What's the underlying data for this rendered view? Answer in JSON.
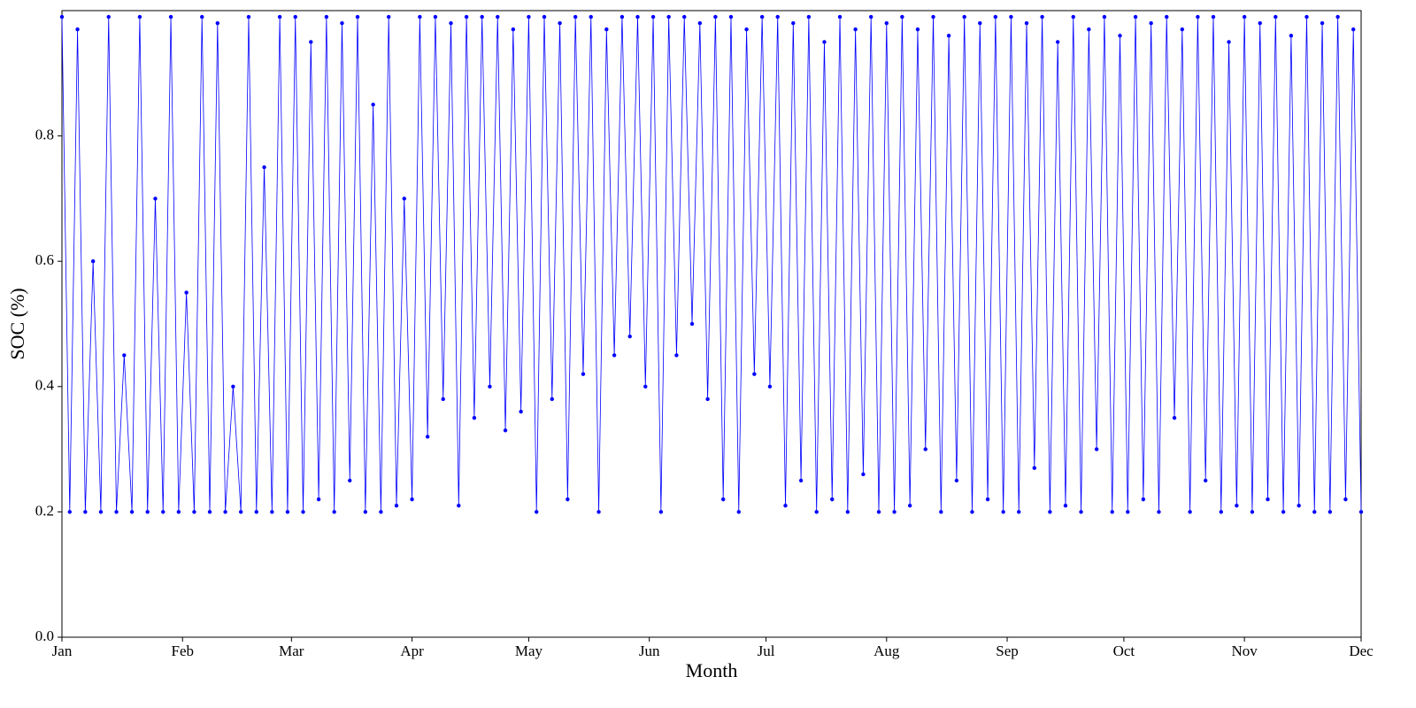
{
  "chart_data": {
    "type": "line",
    "xlabel": "Month",
    "ylabel": "SOC (%)",
    "xlim": [
      0,
      334
    ],
    "ylim": [
      0,
      1
    ],
    "xticks": [
      {
        "value": 0,
        "label": "Jan"
      },
      {
        "value": 31,
        "label": "Feb"
      },
      {
        "value": 59,
        "label": "Mar"
      },
      {
        "value": 90,
        "label": "Apr"
      },
      {
        "value": 120,
        "label": "May"
      },
      {
        "value": 151,
        "label": "Jun"
      },
      {
        "value": 181,
        "label": "Jul"
      },
      {
        "value": 212,
        "label": "Aug"
      },
      {
        "value": 243,
        "label": "Sep"
      },
      {
        "value": 273,
        "label": "Oct"
      },
      {
        "value": 304,
        "label": "Nov"
      },
      {
        "value": 334,
        "label": "Dec"
      }
    ],
    "yticks": [
      {
        "value": 0,
        "label": "0.0"
      },
      0.2,
      0.4,
      0.6,
      0.8
    ],
    "grid": false,
    "x": [
      0,
      2,
      4,
      6,
      8,
      10,
      12,
      14,
      16,
      18,
      20,
      22,
      24,
      26,
      28,
      30,
      32,
      34,
      36,
      38,
      40,
      42,
      44,
      46,
      48,
      50,
      52,
      54,
      56,
      58,
      60,
      62,
      64,
      66,
      68,
      70,
      72,
      74,
      76,
      78,
      80,
      82,
      84,
      86,
      88,
      90,
      92,
      94,
      96,
      98,
      100,
      102,
      104,
      106,
      108,
      110,
      112,
      114,
      116,
      118,
      120,
      122,
      124,
      126,
      128,
      130,
      132,
      134,
      136,
      138,
      140,
      142,
      144,
      146,
      148,
      150,
      152,
      154,
      156,
      158,
      160,
      162,
      164,
      166,
      168,
      170,
      172,
      174,
      176,
      178,
      180,
      182,
      184,
      186,
      188,
      190,
      192,
      194,
      196,
      198,
      200,
      202,
      204,
      206,
      208,
      210,
      212,
      214,
      216,
      218,
      220,
      222,
      224,
      226,
      228,
      230,
      232,
      234,
      236,
      238,
      240,
      242,
      244,
      246,
      248,
      250,
      252,
      254,
      256,
      258,
      260,
      262,
      264,
      266,
      268,
      270,
      272,
      274,
      276,
      278,
      280,
      282,
      284,
      286,
      288,
      290,
      292,
      294,
      296,
      298,
      300,
      302,
      304,
      306,
      308,
      310,
      312,
      314,
      316,
      318,
      320,
      322,
      324,
      326,
      328,
      330,
      332,
      334
    ],
    "series": [
      {
        "color": "#0000ff",
        "values": [
          0.99,
          0.2,
          0.97,
          0.2,
          0.6,
          0.2,
          0.99,
          0.2,
          0.45,
          0.2,
          0.99,
          0.2,
          0.7,
          0.2,
          0.99,
          0.2,
          0.55,
          0.2,
          0.99,
          0.2,
          0.98,
          0.2,
          0.4,
          0.2,
          0.99,
          0.2,
          0.75,
          0.2,
          0.99,
          0.2,
          0.99,
          0.2,
          0.95,
          0.22,
          0.99,
          0.2,
          0.98,
          0.25,
          0.99,
          0.2,
          0.85,
          0.2,
          0.99,
          0.21,
          0.7,
          0.22,
          0.99,
          0.32,
          0.99,
          0.38,
          0.98,
          0.21,
          0.99,
          0.35,
          0.99,
          0.4,
          0.99,
          0.33,
          0.97,
          0.36,
          0.99,
          0.2,
          0.99,
          0.38,
          0.98,
          0.22,
          0.99,
          0.42,
          0.99,
          0.2,
          0.97,
          0.45,
          0.99,
          0.48,
          0.99,
          0.4,
          0.99,
          0.2,
          0.99,
          0.45,
          0.99,
          0.5,
          0.98,
          0.38,
          0.99,
          0.22,
          0.99,
          0.2,
          0.97,
          0.42,
          0.99,
          0.4,
          0.99,
          0.21,
          0.98,
          0.25,
          0.99,
          0.2,
          0.95,
          0.22,
          0.99,
          0.2,
          0.97,
          0.26,
          0.99,
          0.2,
          0.98,
          0.2,
          0.99,
          0.21,
          0.97,
          0.3,
          0.99,
          0.2,
          0.96,
          0.25,
          0.99,
          0.2,
          0.98,
          0.22,
          0.99,
          0.2,
          0.99,
          0.2,
          0.98,
          0.27,
          0.99,
          0.2,
          0.95,
          0.21,
          0.99,
          0.2,
          0.97,
          0.3,
          0.99,
          0.2,
          0.96,
          0.2,
          0.99,
          0.22,
          0.98,
          0.2,
          0.99,
          0.35,
          0.97,
          0.2,
          0.99,
          0.25,
          0.99,
          0.2,
          0.95,
          0.21,
          0.99,
          0.2,
          0.98,
          0.22,
          0.99,
          0.2,
          0.96,
          0.21,
          0.99,
          0.2,
          0.98,
          0.2,
          0.99,
          0.22,
          0.97,
          0.2
        ]
      }
    ]
  }
}
